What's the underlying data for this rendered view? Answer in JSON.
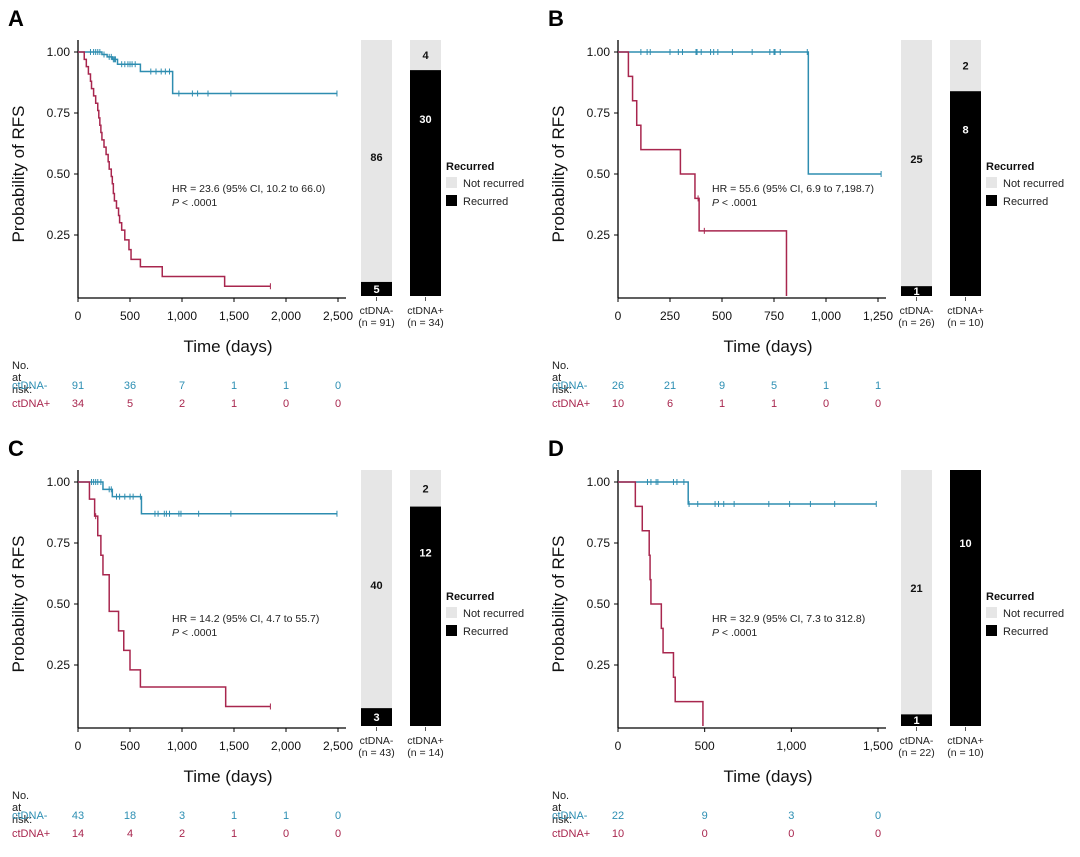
{
  "colors": {
    "ctdna_neg": "#2e8db0",
    "ctdna_pos": "#a8264e",
    "not_recurred": "#e6e6e6",
    "recurred": "#000000"
  },
  "shared": {
    "ylabel": "Probability of RFS",
    "xlabel": "Time (days)",
    "yticks": [
      "1.00",
      "0.75",
      "0.50",
      "0.25"
    ],
    "risk_title": "No. at risk:",
    "neg_label": "ctDNA-",
    "pos_label": "ctDNA+",
    "legend_title": "Recurred",
    "legend_not_recurred": "Not recurred",
    "legend_recurred": "Recurred",
    "p_prefix": "P",
    "p_value": " < .0001"
  },
  "chart_data": [
    {
      "panel": "A",
      "type": "line",
      "subtype": "kaplan-meier",
      "xlim": [
        0,
        2500
      ],
      "ylim": [
        0,
        1
      ],
      "xticks": [
        0,
        500,
        1000,
        1500,
        2000,
        2500
      ],
      "xtick_labels": [
        "0",
        "500",
        "1,000",
        "1,500",
        "2,000",
        "2,500"
      ],
      "hr_text": "HR = 23.6 (95% CI, 10.2 to 66.0)",
      "series": [
        {
          "name": "ctDNA-",
          "steps": [
            [
              0,
              1.0
            ],
            [
              230,
              0.99
            ],
            [
              280,
              0.98
            ],
            [
              330,
              0.97
            ],
            [
              380,
              0.95
            ],
            [
              600,
              0.92
            ],
            [
              910,
              0.83
            ],
            [
              2490,
              0.83
            ]
          ],
          "censor": [
            120,
            150,
            170,
            190,
            210,
            250,
            300,
            320,
            340,
            350,
            360,
            420,
            450,
            480,
            500,
            520,
            550,
            700,
            750,
            800,
            840,
            880,
            970,
            1100,
            1150,
            1250,
            1470,
            2490
          ]
        },
        {
          "name": "ctDNA+",
          "steps": [
            [
              0,
              1.0
            ],
            [
              60,
              0.97
            ],
            [
              80,
              0.94
            ],
            [
              100,
              0.91
            ],
            [
              120,
              0.88
            ],
            [
              130,
              0.85
            ],
            [
              150,
              0.82
            ],
            [
              170,
              0.79
            ],
            [
              190,
              0.76
            ],
            [
              200,
              0.73
            ],
            [
              210,
              0.7
            ],
            [
              220,
              0.67
            ],
            [
              230,
              0.64
            ],
            [
              250,
              0.61
            ],
            [
              270,
              0.58
            ],
            [
              290,
              0.55
            ],
            [
              300,
              0.52
            ],
            [
              320,
              0.49
            ],
            [
              330,
              0.46
            ],
            [
              340,
              0.42
            ],
            [
              350,
              0.39
            ],
            [
              370,
              0.36
            ],
            [
              390,
              0.33
            ],
            [
              400,
              0.3
            ],
            [
              420,
              0.27
            ],
            [
              450,
              0.23
            ],
            [
              490,
              0.19
            ],
            [
              510,
              0.15
            ],
            [
              600,
              0.12
            ],
            [
              810,
              0.08
            ],
            [
              1410,
              0.04
            ],
            [
              1850,
              0.04
            ]
          ],
          "censor": [
            1850
          ]
        }
      ],
      "risk": {
        "neg": [
          "91",
          "36",
          "7",
          "1",
          "1",
          "0"
        ],
        "pos": [
          "34",
          "5",
          "2",
          "1",
          "0",
          "0"
        ]
      },
      "bars": {
        "neg": {
          "label": "ctDNA-",
          "n_label": "(n = 91)",
          "not_recurred": 86,
          "recurred": 5
        },
        "pos": {
          "label": "ctDNA+",
          "n_label": "(n = 34)",
          "not_recurred": 4,
          "recurred": 30
        }
      }
    },
    {
      "panel": "B",
      "type": "line",
      "subtype": "kaplan-meier",
      "xlim": [
        0,
        1250
      ],
      "ylim": [
        0,
        1
      ],
      "xticks": [
        0,
        250,
        500,
        750,
        1000,
        1250
      ],
      "xtick_labels": [
        "0",
        "250",
        "500",
        "750",
        "1,000",
        "1,250"
      ],
      "hr_text": "HR = 55.6 (95% CI, 6.9 to 7,198.7)",
      "series": [
        {
          "name": "ctDNA-",
          "steps": [
            [
              0,
              1.0
            ],
            [
              915,
              0.5
            ],
            [
              1265,
              0.5
            ]
          ],
          "censor": [
            110,
            140,
            155,
            250,
            290,
            310,
            375,
            380,
            400,
            445,
            460,
            480,
            550,
            645,
            730,
            750,
            755,
            780,
            910,
            1265
          ]
        },
        {
          "name": "ctDNA+",
          "steps": [
            [
              0,
              1.0
            ],
            [
              50,
              0.9
            ],
            [
              70,
              0.8
            ],
            [
              90,
              0.7
            ],
            [
              110,
              0.6
            ],
            [
              300,
              0.5
            ],
            [
              370,
              0.4
            ],
            [
              390,
              0.267
            ],
            [
              810,
              0.0
            ]
          ],
          "censor": [
            385,
            415
          ]
        }
      ],
      "risk": {
        "neg": [
          "26",
          "21",
          "9",
          "5",
          "1",
          "1"
        ],
        "pos": [
          "10",
          "6",
          "1",
          "1",
          "0",
          "0"
        ]
      },
      "bars": {
        "neg": {
          "label": "ctDNA-",
          "n_label": "(n = 26)",
          "not_recurred": 25,
          "recurred": 1
        },
        "pos": {
          "label": "ctDNA+",
          "n_label": "(n = 10)",
          "not_recurred": 2,
          "recurred": 8
        }
      }
    },
    {
      "panel": "C",
      "type": "line",
      "subtype": "kaplan-meier",
      "xlim": [
        0,
        2500
      ],
      "ylim": [
        0,
        1
      ],
      "xticks": [
        0,
        500,
        1000,
        1500,
        2000,
        2500
      ],
      "xtick_labels": [
        "0",
        "500",
        "1,000",
        "1,500",
        "2,000",
        "2,500"
      ],
      "hr_text": "HR = 14.2 (95% CI, 4.7 to 55.7)",
      "series": [
        {
          "name": "ctDNA-",
          "steps": [
            [
              0,
              1.0
            ],
            [
              240,
              0.97
            ],
            [
              330,
              0.94
            ],
            [
              610,
              0.87
            ],
            [
              2490,
              0.87
            ]
          ],
          "censor": [
            130,
            150,
            170,
            190,
            220,
            300,
            320,
            370,
            400,
            450,
            500,
            530,
            600,
            740,
            770,
            830,
            850,
            880,
            970,
            990,
            1160,
            1470,
            2490
          ]
        },
        {
          "name": "ctDNA+",
          "steps": [
            [
              0,
              1.0
            ],
            [
              110,
              0.93
            ],
            [
              160,
              0.86
            ],
            [
              190,
              0.78
            ],
            [
              220,
              0.7
            ],
            [
              240,
              0.62
            ],
            [
              300,
              0.47
            ],
            [
              390,
              0.39
            ],
            [
              440,
              0.31
            ],
            [
              500,
              0.23
            ],
            [
              600,
              0.16
            ],
            [
              1420,
              0.08
            ],
            [
              1850,
              0.08
            ]
          ],
          "censor": [
            170,
            1850
          ]
        }
      ],
      "risk": {
        "neg": [
          "43",
          "18",
          "3",
          "1",
          "1",
          "0"
        ],
        "pos": [
          "14",
          "4",
          "2",
          "1",
          "0",
          "0"
        ]
      },
      "bars": {
        "neg": {
          "label": "ctDNA-",
          "n_label": "(n = 43)",
          "not_recurred": 40,
          "recurred": 3
        },
        "pos": {
          "label": "ctDNA+",
          "n_label": "(n = 14)",
          "not_recurred": 2,
          "recurred": 12
        }
      }
    },
    {
      "panel": "D",
      "type": "line",
      "subtype": "kaplan-meier",
      "xlim": [
        0,
        1500
      ],
      "ylim": [
        0,
        1
      ],
      "xticks": [
        0,
        500,
        1000,
        1500
      ],
      "xtick_labels": [
        "0",
        "500",
        "1,000",
        "1,500"
      ],
      "hr_text": "HR = 32.9 (95% CI, 7.3 to 312.8)",
      "series": [
        {
          "name": "ctDNA-",
          "steps": [
            [
              0,
              1.0
            ],
            [
              405,
              0.91
            ],
            [
              1490,
              0.91
            ]
          ],
          "censor": [
            170,
            190,
            220,
            230,
            320,
            340,
            380,
            410,
            460,
            560,
            580,
            610,
            670,
            870,
            990,
            1110,
            1250,
            1490
          ]
        },
        {
          "name": "ctDNA+",
          "steps": [
            [
              0,
              1.0
            ],
            [
              100,
              0.9
            ],
            [
              140,
              0.8
            ],
            [
              180,
              0.7
            ],
            [
              185,
              0.6
            ],
            [
              190,
              0.5
            ],
            [
              250,
              0.4
            ],
            [
              260,
              0.3
            ],
            [
              320,
              0.2
            ],
            [
              330,
              0.1
            ],
            [
              490,
              0.0
            ]
          ],
          "censor": []
        }
      ],
      "risk": {
        "neg": [
          "22",
          "9",
          "3",
          "0"
        ],
        "pos": [
          "10",
          "0",
          "0",
          "0"
        ]
      },
      "bars": {
        "neg": {
          "label": "ctDNA-",
          "n_label": "(n = 22)",
          "not_recurred": 21,
          "recurred": 1
        },
        "pos": {
          "label": "ctDNA+",
          "n_label": "(n = 10)",
          "not_recurred": 0,
          "recurred": 10
        }
      }
    }
  ]
}
